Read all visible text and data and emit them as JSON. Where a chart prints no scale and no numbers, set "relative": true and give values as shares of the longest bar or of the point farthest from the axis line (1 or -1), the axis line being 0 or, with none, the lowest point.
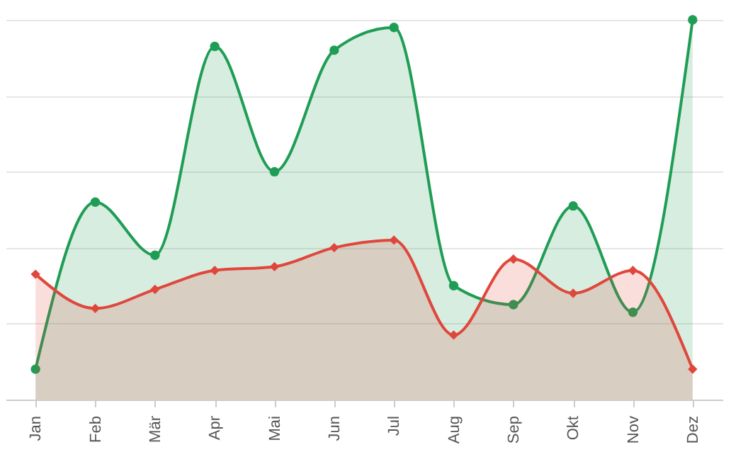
{
  "chart_data": {
    "type": "area",
    "relative": true,
    "grid": "y",
    "line_style": "solid",
    "categories": [
      "Jan",
      "Feb",
      "Mär",
      "Apr",
      "Mai",
      "Jun",
      "Jul",
      "Aug",
      "Sep",
      "Okt",
      "Nov",
      "Dez"
    ],
    "series": [
      {
        "color": "#1f9d55",
        "marker": "circle",
        "values": [
          0.08,
          0.52,
          0.38,
          0.93,
          0.6,
          0.92,
          0.98,
          0.3,
          0.25,
          0.51,
          0.23,
          1.0
        ]
      },
      {
        "color": "#e0473c",
        "marker": "diamond",
        "values": [
          0.33,
          0.24,
          0.29,
          0.34,
          0.35,
          0.4,
          0.42,
          0.17,
          0.37,
          0.28,
          0.34,
          0.08
        ]
      }
    ]
  }
}
